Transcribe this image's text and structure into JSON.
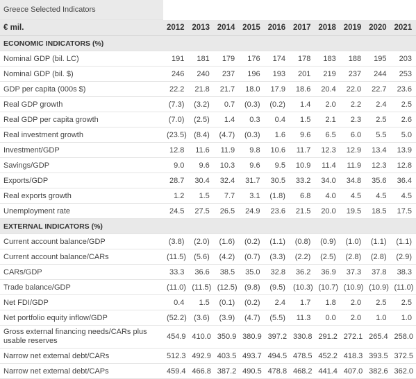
{
  "title": "Greece Selected Indicators",
  "unit_label": "€ mil.",
  "years": [
    "2012",
    "2013",
    "2014",
    "2015",
    "2016",
    "2017",
    "2018",
    "2019",
    "2020",
    "2021"
  ],
  "sections": [
    {
      "heading": "ECONOMIC INDICATORS (%)",
      "rows": [
        {
          "label": "Nominal GDP (bil. LC)",
          "values": [
            "191",
            "181",
            "179",
            "176",
            "174",
            "178",
            "183",
            "188",
            "195",
            "203"
          ]
        },
        {
          "label": "Nominal GDP (bil. $)",
          "values": [
            "246",
            "240",
            "237",
            "196",
            "193",
            "201",
            "219",
            "237",
            "244",
            "253"
          ]
        },
        {
          "label": "GDP per capita (000s $)",
          "values": [
            "22.2",
            "21.8",
            "21.7",
            "18.0",
            "17.9",
            "18.6",
            "20.4",
            "22.0",
            "22.7",
            "23.6"
          ]
        },
        {
          "label": "Real GDP growth",
          "values": [
            "(7.3)",
            "(3.2)",
            "0.7",
            "(0.3)",
            "(0.2)",
            "1.4",
            "2.0",
            "2.2",
            "2.4",
            "2.5"
          ]
        },
        {
          "label": "Real GDP per capita growth",
          "values": [
            "(7.0)",
            "(2.5)",
            "1.4",
            "0.3",
            "0.4",
            "1.5",
            "2.1",
            "2.3",
            "2.5",
            "2.6"
          ]
        },
        {
          "label": "Real investment growth",
          "values": [
            "(23.5)",
            "(8.4)",
            "(4.7)",
            "(0.3)",
            "1.6",
            "9.6",
            "6.5",
            "6.0",
            "5.5",
            "5.0"
          ]
        },
        {
          "label": "Investment/GDP",
          "values": [
            "12.8",
            "11.6",
            "11.9",
            "9.8",
            "10.6",
            "11.7",
            "12.3",
            "12.9",
            "13.4",
            "13.9"
          ]
        },
        {
          "label": "Savings/GDP",
          "values": [
            "9.0",
            "9.6",
            "10.3",
            "9.6",
            "9.5",
            "10.9",
            "11.4",
            "11.9",
            "12.3",
            "12.8"
          ]
        },
        {
          "label": "Exports/GDP",
          "values": [
            "28.7",
            "30.4",
            "32.4",
            "31.7",
            "30.5",
            "33.2",
            "34.0",
            "34.8",
            "35.6",
            "36.4"
          ]
        },
        {
          "label": "Real exports growth",
          "values": [
            "1.2",
            "1.5",
            "7.7",
            "3.1",
            "(1.8)",
            "6.8",
            "4.0",
            "4.5",
            "4.5",
            "4.5"
          ]
        },
        {
          "label": "Unemployment rate",
          "values": [
            "24.5",
            "27.5",
            "26.5",
            "24.9",
            "23.6",
            "21.5",
            "20.0",
            "19.5",
            "18.5",
            "17.5"
          ]
        }
      ]
    },
    {
      "heading": "EXTERNAL INDICATORS (%)",
      "rows": [
        {
          "label": "Current account balance/GDP",
          "values": [
            "(3.8)",
            "(2.0)",
            "(1.6)",
            "(0.2)",
            "(1.1)",
            "(0.8)",
            "(0.9)",
            "(1.0)",
            "(1.1)",
            "(1.1)"
          ]
        },
        {
          "label": "Current account balance/CARs",
          "values": [
            "(11.5)",
            "(5.6)",
            "(4.2)",
            "(0.7)",
            "(3.3)",
            "(2.2)",
            "(2.5)",
            "(2.8)",
            "(2.8)",
            "(2.9)"
          ]
        },
        {
          "label": "CARs/GDP",
          "values": [
            "33.3",
            "36.6",
            "38.5",
            "35.0",
            "32.8",
            "36.2",
            "36.9",
            "37.3",
            "37.8",
            "38.3"
          ]
        },
        {
          "label": "Trade balance/GDP",
          "values": [
            "(11.0)",
            "(11.5)",
            "(12.5)",
            "(9.8)",
            "(9.5)",
            "(10.3)",
            "(10.7)",
            "(10.9)",
            "(10.9)",
            "(11.0)"
          ]
        },
        {
          "label": "Net FDI/GDP",
          "values": [
            "0.4",
            "1.5",
            "(0.1)",
            "(0.2)",
            "2.4",
            "1.7",
            "1.8",
            "2.0",
            "2.5",
            "2.5"
          ]
        },
        {
          "label": "Net portfolio equity inflow/GDP",
          "values": [
            "(52.2)",
            "(3.6)",
            "(3.9)",
            "(4.7)",
            "(5.5)",
            "11.3",
            "0.0",
            "2.0",
            "1.0",
            "1.0"
          ]
        },
        {
          "label": "Gross external financing needs/CARs plus usable reserves",
          "values": [
            "454.9",
            "410.0",
            "350.9",
            "380.9",
            "397.2",
            "330.8",
            "291.2",
            "272.1",
            "265.4",
            "258.0"
          ],
          "tall": true
        },
        {
          "label": "Narrow net external debt/CARs",
          "values": [
            "512.3",
            "492.9",
            "403.5",
            "493.7",
            "494.5",
            "478.5",
            "452.2",
            "418.3",
            "393.5",
            "372.5"
          ]
        },
        {
          "label": "Narrow net external debt/CAPs",
          "values": [
            "459.4",
            "466.8",
            "387.2",
            "490.5",
            "478.8",
            "468.2",
            "441.4",
            "407.0",
            "382.6",
            "362.0"
          ]
        }
      ]
    }
  ]
}
